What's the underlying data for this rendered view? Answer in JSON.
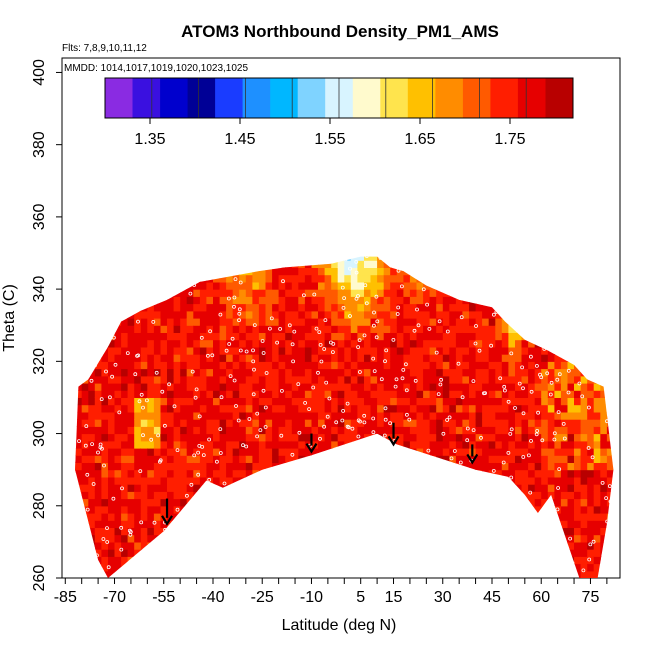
{
  "chart_data": {
    "type": "heatmap",
    "title": "ATOM3 Northbound Density_PM1_AMS",
    "flights_note": "Flts: 7,8,9,10,11,12",
    "dates_note": "MMDD: 1014,1017,1019,1020,1023,1025",
    "xlabel": "Latitude (deg N)",
    "ylabel": "Theta (C)",
    "xlim": [
      -86,
      84
    ],
    "ylim": [
      260,
      404
    ],
    "x_tick_labels": [
      "-85",
      "-70",
      "-55",
      "-40",
      "-25",
      "-10",
      "5",
      "15",
      "30",
      "45",
      "60",
      "75"
    ],
    "y_tick_labels": [
      "260",
      "280",
      "300",
      "320",
      "340",
      "360",
      "380",
      "400"
    ],
    "colorbar": {
      "range": [
        1.3,
        1.82
      ],
      "tick_labels": [
        "1.35",
        "1.45",
        "1.55",
        "1.65",
        "1.75"
      ],
      "colors": [
        "#8a2be2",
        "#3a10e0",
        "#0000cd",
        "#000096",
        "#1a3cff",
        "#1e90ff",
        "#00b7ff",
        "#7fd3ff",
        "#d8f4ff",
        "#fffacd",
        "#ffe44d",
        "#ffc000",
        "#ff8c00",
        "#ff5a00",
        "#ff1e00",
        "#e60000",
        "#b80000"
      ]
    },
    "domain_boundary": {
      "latitude": [
        -82,
        -75,
        -72,
        -55,
        -42,
        -37,
        -25,
        -10,
        10,
        16,
        40,
        50,
        55,
        59,
        63,
        72,
        77,
        80,
        82,
        79,
        74,
        70,
        62,
        55,
        49,
        45,
        35,
        25,
        18,
        14,
        10,
        5,
        -4,
        -18,
        -26,
        -44,
        -54,
        -62,
        -68,
        -72,
        -78,
        -81,
        -82
      ],
      "theta_bottom": [
        290,
        265,
        260,
        273,
        287,
        285,
        290,
        294,
        300,
        297,
        290,
        288,
        283,
        278,
        283,
        259,
        259,
        275,
        290
      ],
      "theta_top": [
        313,
        315,
        319,
        323,
        326,
        331,
        335,
        337,
        341,
        345,
        346,
        349,
        349,
        347,
        346,
        345,
        342,
        337,
        334,
        331,
        324,
        315,
        313
      ]
    },
    "flight_path_arrows_latitude": [
      -54,
      -10,
      15,
      39
    ],
    "field_note": "Values mostly 1.70-1.80 (orange-red); lower values (1.40-1.60, blue-yellow) appear near the top of the domain around 0-10 deg N and 48-55 deg N."
  }
}
